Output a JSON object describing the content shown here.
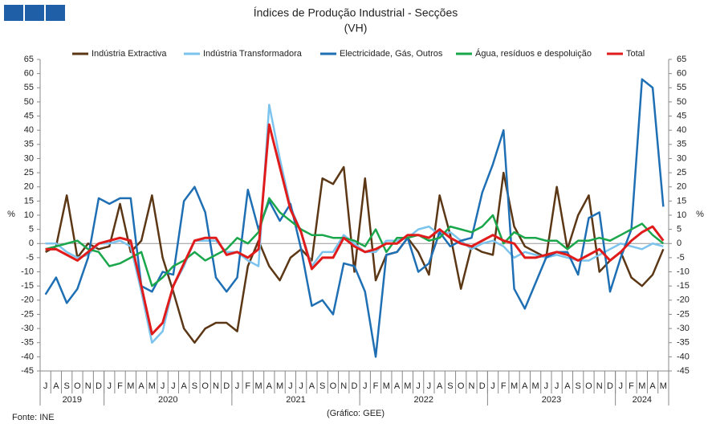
{
  "chart_data": {
    "type": "line",
    "title": "Índices de Produção Industrial - Secções",
    "subtitle": "(VH)",
    "ylabel": "%",
    "y2label": "%",
    "source": "Fonte: INE",
    "credit": "(Gráfico: GEE)",
    "categories": [
      "J",
      "A",
      "S",
      "O",
      "N",
      "D",
      "J",
      "F",
      "M",
      "A",
      "M",
      "J",
      "J",
      "A",
      "S",
      "O",
      "N",
      "D",
      "J",
      "F",
      "M",
      "A",
      "M",
      "J",
      "J",
      "A",
      "S",
      "O",
      "N",
      "D",
      "J",
      "F",
      "M",
      "A",
      "M",
      "J",
      "J",
      "A",
      "S",
      "O",
      "N",
      "D",
      "J",
      "F",
      "M",
      "A",
      "M",
      "J",
      "J",
      "A",
      "S",
      "O",
      "N",
      "D",
      "J",
      "F",
      "M",
      "A",
      "M"
    ],
    "years": [
      "2019",
      "2020",
      "2021",
      "2022",
      "2023",
      "2024"
    ],
    "series": [
      {
        "name": "Indústria Extractiva",
        "color": "#5c3715",
        "values": [
          -3,
          -1,
          17,
          -5,
          0,
          -2,
          -1,
          14,
          -3,
          1,
          17,
          -5,
          -17,
          -30,
          -35,
          -30,
          -28,
          -28,
          -31,
          -8,
          1,
          -8,
          -13,
          -5,
          -2,
          -6,
          23,
          21,
          27,
          -10,
          23,
          -13,
          -4,
          -3,
          2,
          -3,
          -11,
          17,
          3,
          -16,
          -1,
          -3,
          -4,
          25,
          6,
          -1,
          -3,
          -5,
          20,
          -2,
          10,
          17,
          -10,
          -6,
          -3,
          -12,
          -15,
          -11,
          -2
        ]
      },
      {
        "name": "Indústria Transformadora",
        "color": "#7cc4ee",
        "values": [
          0,
          0,
          -3,
          -5,
          -4,
          0,
          0,
          1,
          -1,
          -17,
          -35,
          -31,
          -15,
          -8,
          1,
          1,
          1,
          -3,
          -3,
          -6,
          -8,
          49,
          30,
          13,
          4,
          -8,
          -3,
          -3,
          3,
          0,
          -3,
          -3,
          1,
          1,
          2,
          5,
          6,
          3,
          4,
          1,
          -2,
          0,
          1,
          -1,
          -5,
          -3,
          -4,
          -5,
          -4,
          -5,
          -6,
          -6,
          -4,
          -2,
          0,
          -1,
          -2,
          0,
          -1
        ]
      },
      {
        "name": "Electricidade, Gás, Outros",
        "color": "#1f6fb4",
        "values": [
          -18,
          -12,
          -21,
          -16,
          -5,
          16,
          14,
          16,
          16,
          -15,
          -17,
          -10,
          -11,
          15,
          20,
          11,
          -12,
          -17,
          -12,
          19,
          5,
          15,
          8,
          14,
          -2,
          -22,
          -20,
          -25,
          -7,
          -8,
          -17,
          -40,
          -4,
          -3,
          2,
          -10,
          -7,
          4,
          -1,
          1,
          2,
          18,
          28,
          40,
          -16,
          -23,
          -14,
          -5,
          -3,
          -3,
          -11,
          9,
          11,
          -17,
          -5,
          5,
          58,
          55,
          13
        ]
      },
      {
        "name": "Água, resíduos e despoluição",
        "color": "#1aa64a",
        "values": [
          -2,
          -1,
          0,
          1,
          -2,
          -3,
          -8,
          -7,
          -5,
          -3,
          -15,
          -12,
          -8,
          -6,
          -3,
          -6,
          -4,
          -2,
          2,
          0,
          4,
          16,
          11,
          8,
          5,
          3,
          3,
          2,
          2,
          1,
          -1,
          5,
          -3,
          2,
          2,
          3,
          1,
          2,
          6,
          5,
          4,
          6,
          10,
          0,
          4,
          2,
          2,
          1,
          1,
          -2,
          1,
          1,
          2,
          1,
          3,
          5,
          7,
          3,
          0
        ]
      },
      {
        "name": "Total",
        "color": "#e01b1b",
        "values": [
          -2,
          -2,
          -4,
          -6,
          -3,
          0,
          1,
          2,
          1,
          -15,
          -32,
          -28,
          -15,
          -7,
          1,
          2,
          2,
          -4,
          -3,
          -5,
          -2,
          42,
          27,
          12,
          4,
          -9,
          -5,
          -5,
          2,
          -1,
          -3,
          -2,
          0,
          0,
          3,
          3,
          2,
          5,
          2,
          0,
          -1,
          1,
          3,
          1,
          0,
          -5,
          -5,
          -4,
          -3,
          -4,
          -6,
          -4,
          -2,
          -6,
          -3,
          1,
          4,
          6,
          1
        ]
      }
    ],
    "ylim": [
      -45,
      65
    ],
    "yticks": [
      -45,
      -40,
      -35,
      -30,
      -25,
      -20,
      -15,
      -10,
      -5,
      0,
      5,
      10,
      15,
      20,
      25,
      30,
      35,
      40,
      45,
      50,
      55,
      60,
      65
    ],
    "y2lim": [
      -45,
      65
    ],
    "y2ticks": [
      -45,
      -40,
      -35,
      -30,
      -25,
      -20,
      -15,
      -10,
      -5,
      0,
      5,
      10,
      15,
      20,
      25,
      30,
      35,
      40,
      45,
      50,
      55,
      60,
      65
    ],
    "grid": false,
    "legend": "top"
  }
}
